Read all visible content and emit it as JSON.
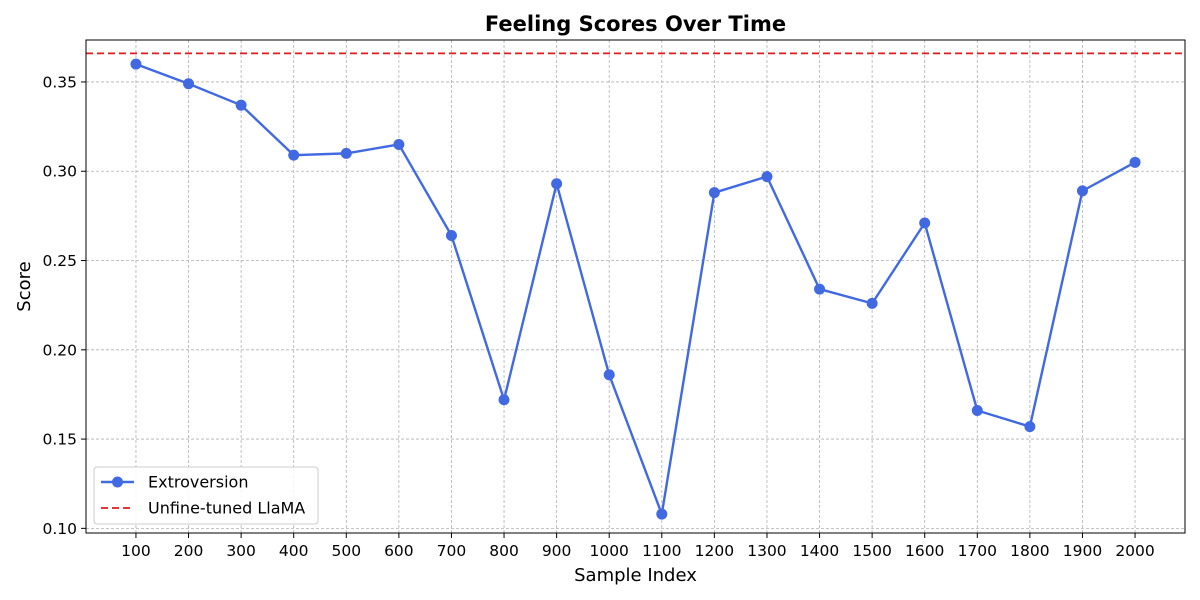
{
  "chart_data": {
    "type": "line",
    "title": "Feeling Scores Over Time",
    "xlabel": "Sample Index",
    "ylabel": "Score",
    "x": [
      100,
      200,
      300,
      400,
      500,
      600,
      700,
      800,
      900,
      1000,
      1100,
      1200,
      1300,
      1400,
      1500,
      1600,
      1700,
      1800,
      1900,
      2000
    ],
    "series": [
      {
        "name": "Extroversion",
        "color": "#4169e1",
        "marker": "circle",
        "values": [
          0.36,
          0.349,
          0.337,
          0.309,
          0.31,
          0.315,
          0.264,
          0.172,
          0.293,
          0.186,
          0.108,
          0.288,
          0.297,
          0.234,
          0.226,
          0.271,
          0.166,
          0.157,
          0.289,
          0.305
        ]
      }
    ],
    "reference_lines": [
      {
        "name": "Unfine-tuned LlaMA",
        "value": 0.366,
        "color": "#e31a1c",
        "style": "dashed"
      }
    ],
    "xlim": [
      5,
      2095
    ],
    "ylim": [
      0.0974,
      0.3735
    ],
    "yticks": [
      "0.10",
      "0.15",
      "0.20",
      "0.25",
      "0.30",
      "0.35"
    ],
    "xticks": [
      "100",
      "200",
      "300",
      "400",
      "500",
      "600",
      "700",
      "800",
      "900",
      "1000",
      "1100",
      "1200",
      "1300",
      "1400",
      "1500",
      "1600",
      "1700",
      "1800",
      "1900",
      "2000"
    ],
    "grid": true,
    "legend_position": "lower-left"
  }
}
